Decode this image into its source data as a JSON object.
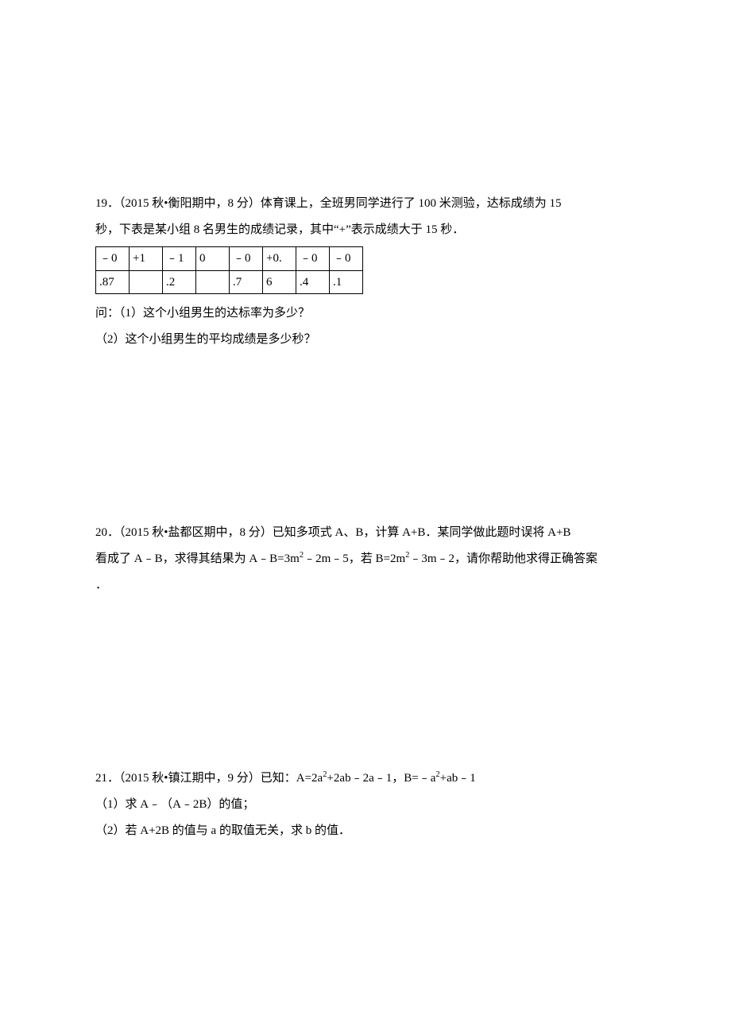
{
  "q19": {
    "line1": "19．（2015 秋•衡阳期中，8 分）体育课上，全班男同学进行了 100 米测验，达标成绩为 15",
    "line2": "秒，下表是某小组 8 名男生的成绩记录，其中“+”表示成绩大于 15 秒．",
    "table": {
      "rows": [
        [
          "﹣0",
          "+1",
          "﹣1",
          "0",
          "﹣0",
          "+0.",
          "﹣0",
          "﹣0"
        ],
        [
          ".87",
          "",
          ".2",
          "",
          ".7",
          "6",
          ".4",
          ".1"
        ]
      ]
    },
    "sub1": "问：（1）这个小组男生的达标率为多少？",
    "sub2": "（2）这个小组男生的平均成绩是多少秒？"
  },
  "q20": {
    "line1": "20．（2015 秋•盐都区期中，8 分）已知多项式 A、B，计算 A+B．某同学做此题时误将 A+B",
    "line2_pre": "看成了 A﹣B，求得其结果为 A﹣B=3m",
    "line2_mid": "﹣2m﹣5，若 B=2m",
    "line2_post": "﹣3m﹣2，请你帮助他求得正确答案",
    "line3": "．"
  },
  "q21": {
    "line1_pre": "21．（2015 秋•镇江期中，9 分）已知：A=2a",
    "line1_mid": "+2ab﹣2a﹣1，B=﹣a",
    "line1_post": "+ab﹣1",
    "sub1": "（1）求 A﹣（A﹣2B）的值；",
    "sub2": "（2）若 A+2B 的值与 a 的取值无关，求 b 的值．"
  }
}
